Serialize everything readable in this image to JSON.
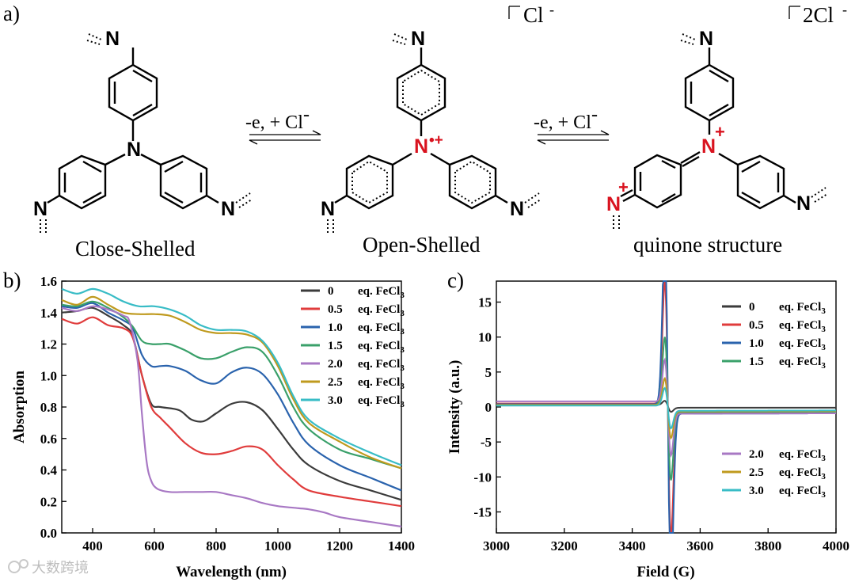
{
  "panel_a": {
    "label": "a)",
    "structures": [
      {
        "name": "Close-Shelled",
        "counterion": ""
      },
      {
        "name": "Open-Shelled",
        "counterion": "Cl"
      },
      {
        "name": "quinone structure",
        "counterion": "2Cl"
      }
    ],
    "arrows": [
      {
        "label": "-e, + Cl"
      },
      {
        "label": "-e, + Cl"
      }
    ],
    "atom_N": "N",
    "charge_minus": "-",
    "radical_cation": "•+",
    "charge_plus": "+"
  },
  "chart_data": [
    {
      "panel": "b)",
      "type": "line",
      "xlabel": "Wavelength (nm)",
      "ylabel": "Absorption",
      "xlim": [
        300,
        1400
      ],
      "ylim": [
        0,
        1.6
      ],
      "xticks": [
        400,
        600,
        800,
        1000,
        1200,
        1400
      ],
      "yticks": [
        0.0,
        0.2,
        0.4,
        0.6,
        0.8,
        1.0,
        1.2,
        1.4,
        1.6
      ],
      "series": [
        {
          "name": "0",
          "legend_suffix": "eq. FeCl",
          "sub": "3",
          "color": "#3b3b3b",
          "x": [
            300,
            350,
            400,
            450,
            500,
            530,
            560,
            590,
            620,
            680,
            720,
            760,
            800,
            850,
            900,
            950,
            1000,
            1050,
            1100,
            1200,
            1300,
            1400
          ],
          "y": [
            1.4,
            1.41,
            1.43,
            1.38,
            1.32,
            1.25,
            1.0,
            0.82,
            0.8,
            0.78,
            0.72,
            0.71,
            0.76,
            0.82,
            0.83,
            0.78,
            0.66,
            0.53,
            0.43,
            0.33,
            0.27,
            0.21
          ]
        },
        {
          "name": "0.5",
          "legend_suffix": "eq. FeCl",
          "sub": "3",
          "color": "#e03c3c",
          "x": [
            300,
            350,
            400,
            450,
            500,
            530,
            560,
            590,
            620,
            650,
            700,
            750,
            800,
            850,
            900,
            950,
            1000,
            1050,
            1100,
            1200,
            1300,
            1400
          ],
          "y": [
            1.36,
            1.33,
            1.37,
            1.32,
            1.3,
            1.24,
            1.0,
            0.8,
            0.73,
            0.67,
            0.57,
            0.51,
            0.5,
            0.52,
            0.55,
            0.53,
            0.43,
            0.34,
            0.27,
            0.23,
            0.2,
            0.17
          ]
        },
        {
          "name": "1.0",
          "legend_suffix": "eq. FeCl",
          "sub": "3",
          "color": "#2a63ad",
          "x": [
            300,
            350,
            400,
            450,
            500,
            530,
            560,
            590,
            620,
            650,
            700,
            750,
            800,
            850,
            900,
            950,
            1000,
            1050,
            1100,
            1200,
            1300,
            1400
          ],
          "y": [
            1.44,
            1.43,
            1.46,
            1.4,
            1.35,
            1.3,
            1.13,
            1.06,
            1.06,
            1.06,
            1.03,
            0.97,
            0.95,
            1.02,
            1.05,
            1.01,
            0.88,
            0.7,
            0.56,
            0.43,
            0.35,
            0.27
          ]
        },
        {
          "name": "1.5",
          "legend_suffix": "eq. FeCl",
          "sub": "3",
          "color": "#3aa06a",
          "x": [
            300,
            350,
            400,
            450,
            500,
            530,
            560,
            590,
            620,
            650,
            700,
            750,
            800,
            850,
            900,
            950,
            1000,
            1050,
            1100,
            1200,
            1300,
            1400
          ],
          "y": [
            1.45,
            1.44,
            1.47,
            1.43,
            1.37,
            1.31,
            1.22,
            1.2,
            1.2,
            1.2,
            1.16,
            1.11,
            1.11,
            1.15,
            1.18,
            1.15,
            1.0,
            0.8,
            0.66,
            0.53,
            0.47,
            0.41
          ]
        },
        {
          "name": "2.0",
          "legend_suffix": "eq. FeCl",
          "sub": "3",
          "color": "#a878c4",
          "x": [
            300,
            350,
            400,
            450,
            500,
            520,
            545,
            560,
            575,
            590,
            610,
            650,
            700,
            750,
            800,
            850,
            900,
            950,
            1000,
            1050,
            1100,
            1150,
            1200,
            1300,
            1400
          ],
          "y": [
            1.43,
            1.41,
            1.44,
            1.42,
            1.38,
            1.34,
            1.1,
            0.75,
            0.45,
            0.33,
            0.28,
            0.26,
            0.26,
            0.26,
            0.26,
            0.24,
            0.22,
            0.19,
            0.17,
            0.16,
            0.15,
            0.13,
            0.1,
            0.07,
            0.04
          ]
        },
        {
          "name": "2.5",
          "legend_suffix": "eq. FeCl",
          "sub": "3",
          "color": "#bf9a1e",
          "x": [
            300,
            350,
            400,
            450,
            500,
            550,
            600,
            650,
            700,
            750,
            800,
            850,
            900,
            950,
            1000,
            1050,
            1100,
            1200,
            1300,
            1400
          ],
          "y": [
            1.48,
            1.45,
            1.5,
            1.45,
            1.4,
            1.39,
            1.39,
            1.38,
            1.34,
            1.29,
            1.27,
            1.27,
            1.26,
            1.21,
            1.06,
            0.85,
            0.7,
            0.58,
            0.48,
            0.41
          ]
        },
        {
          "name": "3.0",
          "legend_suffix": "eq. FeCl",
          "sub": "3",
          "color": "#38bcc6",
          "x": [
            300,
            350,
            400,
            450,
            500,
            550,
            600,
            650,
            700,
            750,
            800,
            850,
            900,
            950,
            1000,
            1050,
            1100,
            1200,
            1300,
            1400
          ],
          "y": [
            1.55,
            1.52,
            1.55,
            1.52,
            1.47,
            1.44,
            1.44,
            1.42,
            1.38,
            1.32,
            1.29,
            1.29,
            1.28,
            1.22,
            1.08,
            0.87,
            0.72,
            0.6,
            0.51,
            0.43
          ]
        }
      ]
    },
    {
      "panel": "c)",
      "type": "line",
      "xlabel": "Field (G)",
      "ylabel": "Intensity (a.u.)",
      "xlim": [
        3000,
        4000
      ],
      "ylim": [
        -18,
        18
      ],
      "xticks": [
        3000,
        3200,
        3400,
        3600,
        3800,
        4000
      ],
      "yticks": [
        -15,
        -10,
        -5,
        0,
        5,
        10,
        15
      ],
      "center": 3505,
      "series": [
        {
          "name": "0",
          "legend_suffix": "eq. FeCl",
          "sub": "3",
          "color": "#3b3b3b",
          "amp": 0.4,
          "base_left": 0.3,
          "base_right": -0.1
        },
        {
          "name": "0.5",
          "legend_suffix": "eq. FeCl",
          "sub": "3",
          "color": "#e03c3c",
          "amp": 10.8,
          "base_left": 0.5,
          "base_right": -0.8
        },
        {
          "name": "1.0",
          "legend_suffix": "eq. FeCl",
          "sub": "3",
          "color": "#2a63ad",
          "amp": 15.2,
          "base_left": 0.4,
          "base_right": -0.9
        },
        {
          "name": "1.5",
          "legend_suffix": "eq. FeCl",
          "sub": "3",
          "color": "#3aa06a",
          "amp": 6.0,
          "base_left": 0.3,
          "base_right": -0.7
        },
        {
          "name": "2.0",
          "legend_suffix": "eq. FeCl",
          "sub": "3",
          "color": "#a878c4",
          "amp": 3.8,
          "base_left": 0.8,
          "base_right": -0.9
        },
        {
          "name": "2.5",
          "legend_suffix": "eq. FeCl",
          "sub": "3",
          "color": "#bf9a1e",
          "amp": 2.4,
          "base_left": 0.3,
          "base_right": -0.6
        },
        {
          "name": "3.0",
          "legend_suffix": "eq. FeCl",
          "sub": "3",
          "color": "#38bcc6",
          "amp": 1.6,
          "base_left": 0.2,
          "base_right": -0.5
        }
      ]
    }
  ],
  "watermark": "大数跨境"
}
